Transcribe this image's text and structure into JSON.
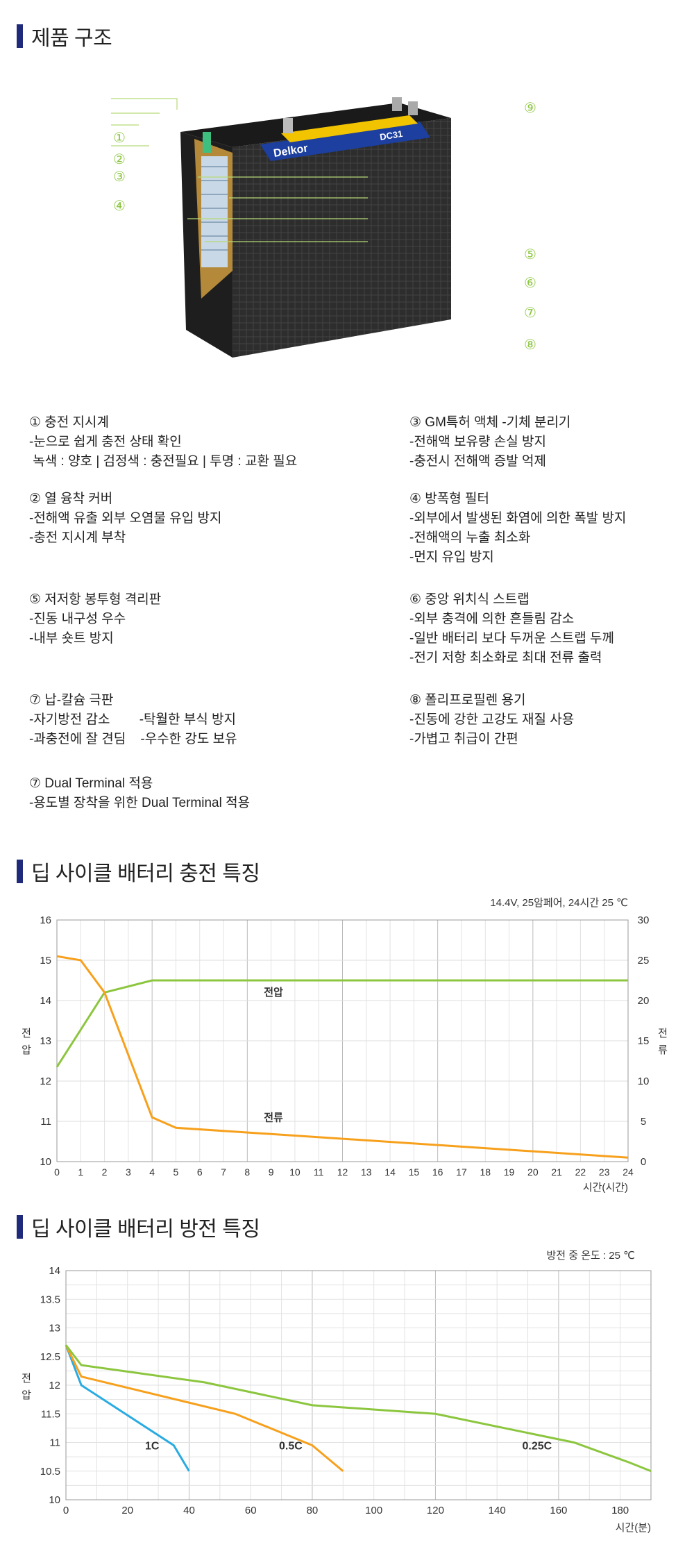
{
  "sections": {
    "structure_title": "제품 구조",
    "charge_title": "딥 사이클 배터리 충전 특징",
    "discharge_title": "딥 사이클 배터리 방전 특징"
  },
  "callouts": [
    "①",
    "②",
    "③",
    "④",
    "⑤",
    "⑥",
    "⑦",
    "⑧",
    "⑨"
  ],
  "battery": {
    "brand": "Delkor",
    "model": "DC31"
  },
  "features": [
    {
      "title": "① 충전 지시계",
      "lines": [
        "-눈으로 쉽게 충전 상태 확인",
        " 녹색 : 양호 | 검정색 : 충전필요 | 투명 : 교환 필요"
      ]
    },
    {
      "title": "③ GM특허 액체 -기체 분리기",
      "lines": [
        "-전해액 보유량 손실 방지",
        "-충전시 전해액 증발 억제"
      ]
    },
    {
      "title": "② 열 융착 커버",
      "lines": [
        "-전해액 유출 외부 오염물 유입 방지",
        "-충전 지시계 부착"
      ]
    },
    {
      "title": "④ 방폭형 필터",
      "lines": [
        "-외부에서 발생된 화염에 의한 폭발 방지",
        "-전해액의 누출 최소화",
        "-먼지 유입 방지"
      ]
    },
    {
      "title": "⑤ 저저항 봉투형 격리판",
      "lines": [
        "-진동 내구성 우수",
        "-내부 숏트 방지"
      ]
    },
    {
      "title": "⑥ 중앙 위치식 스트랩",
      "lines": [
        "-외부 충격에 의한 흔들림 감소",
        "-일반 배터리 보다 두꺼운 스트랩 두께",
        "-전기 저항 최소화로 최대 전류 출력"
      ]
    },
    {
      "title": "⑦ 납-칼슘 극판",
      "lines": [
        "-자기방전 감소        -탁월한 부식 방지",
        "-과충전에 잘 견딤    -우수한 강도 보유"
      ]
    },
    {
      "title": "⑧ 폴리프로필렌 용기",
      "lines": [
        "-진동에 강한 고강도 재질 사용",
        "-가볍고 취급이 간편"
      ]
    },
    {
      "title": "⑦ Dual Terminal 적용",
      "lines": [
        "-용도별 장착을 위한 Dual Terminal 적용"
      ]
    }
  ],
  "chart_data": [
    {
      "type": "line",
      "title": "",
      "condition_note": "14.4V, 25암페어, 24시간 25 ℃",
      "xlabel": "시간(시간)",
      "ylabel_left": "전\n압",
      "ylabel_right": "전\n류",
      "x_ticks": [
        "0",
        "1",
        "2",
        "3",
        "4",
        "5",
        "6",
        "7",
        "8",
        "9",
        "10",
        "11",
        "12",
        "13",
        "14",
        "15",
        "16",
        "17",
        "18",
        "19",
        "20",
        "21",
        "22",
        "23",
        "24"
      ],
      "y_left_ticks": [
        "10",
        "11",
        "12",
        "13",
        "14",
        "15",
        "16"
      ],
      "y_right_ticks": [
        "0",
        "5",
        "10",
        "15",
        "20",
        "25",
        "30"
      ],
      "xlim": [
        0,
        24
      ],
      "ylim_left": [
        10,
        16
      ],
      "ylim_right": [
        0,
        30
      ],
      "grid": true,
      "series": [
        {
          "name": "전압",
          "axis": "left",
          "color": "#8cc63f",
          "x": [
            0,
            2,
            4,
            24
          ],
          "values": [
            12.35,
            14.2,
            14.5,
            14.5
          ]
        },
        {
          "name": "전류",
          "axis": "right",
          "color": "#f7a01c",
          "x": [
            0,
            1,
            2,
            4,
            5,
            24
          ],
          "values": [
            25.5,
            25,
            21,
            5.5,
            4.2,
            0.5
          ]
        }
      ]
    },
    {
      "type": "line",
      "title": "",
      "condition_note": "방전 중 온도 : 25 ℃",
      "xlabel": "시간(분)",
      "ylabel": "전\n압",
      "x_ticks": [
        "0",
        "20",
        "40",
        "60",
        "80",
        "100",
        "120",
        "140",
        "160",
        "180"
      ],
      "y_ticks": [
        "10",
        "10.5",
        "11",
        "11.5",
        "12",
        "12.5",
        "13",
        "13.5",
        "14"
      ],
      "xlim": [
        0,
        190
      ],
      "ylim": [
        10,
        14
      ],
      "grid": true,
      "series": [
        {
          "name": "1C",
          "color": "#29abe2",
          "x": [
            0,
            5,
            35,
            40
          ],
          "values": [
            12.7,
            12.0,
            10.95,
            10.5
          ]
        },
        {
          "name": "0.5C",
          "color": "#f7a01c",
          "x": [
            0,
            5,
            55,
            80,
            90
          ],
          "values": [
            12.7,
            12.15,
            11.5,
            10.95,
            10.5
          ]
        },
        {
          "name": "0.25C",
          "color": "#8cc63f",
          "x": [
            0,
            5,
            25,
            45,
            80,
            120,
            165,
            183,
            190
          ],
          "values": [
            12.7,
            12.35,
            12.2,
            12.05,
            11.65,
            11.5,
            11.0,
            10.65,
            10.5
          ]
        }
      ]
    }
  ]
}
